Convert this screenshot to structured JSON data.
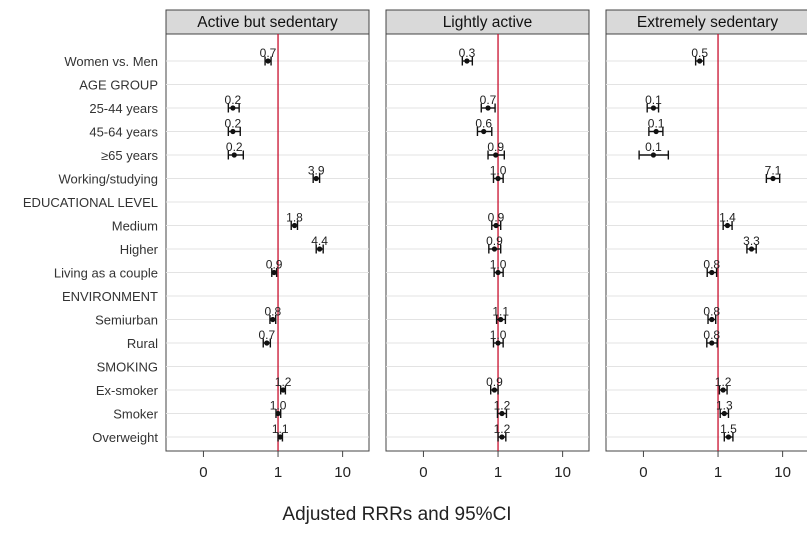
{
  "chart_data": {
    "type": "forest",
    "xlabel": "Adjusted RRRs and 95%CI",
    "x_scale": "log",
    "x_ticks": [
      "0",
      "1",
      "10"
    ],
    "reference_line": 1,
    "reference_color": "#c8102e",
    "rows": [
      {
        "label": "Women vs. Men",
        "header": false
      },
      {
        "label": "AGE GROUP",
        "header": true
      },
      {
        "label": "25-44 years",
        "header": false
      },
      {
        "label": "45-64 years",
        "header": false
      },
      {
        "label": "≥65 years",
        "header": false
      },
      {
        "label": "Working/studying",
        "header": false
      },
      {
        "label": "EDUCATIONAL LEVEL",
        "header": true
      },
      {
        "label": "Medium",
        "header": false
      },
      {
        "label": "Higher",
        "header": false
      },
      {
        "label": "Living as a couple",
        "header": false
      },
      {
        "label": "ENVIRONMENT",
        "header": true
      },
      {
        "label": "Semiurban",
        "header": false
      },
      {
        "label": "Rural",
        "header": false
      },
      {
        "label": "SMOKING",
        "header": true
      },
      {
        "label": "Ex-smoker",
        "header": false
      },
      {
        "label": "Smoker",
        "header": false
      },
      {
        "label": "Overweight",
        "header": false
      }
    ],
    "panels": [
      {
        "title": "Active but sedentary",
        "estimates": [
          {
            "row": 0,
            "label": "0.7",
            "value": 0.7,
            "lo": 0.63,
            "hi": 0.78
          },
          {
            "row": 2,
            "label": "0.2",
            "value": 0.2,
            "lo": 0.17,
            "hi": 0.25
          },
          {
            "row": 3,
            "label": "0.2",
            "value": 0.2,
            "lo": 0.17,
            "hi": 0.26
          },
          {
            "row": 4,
            "label": "0.2",
            "value": 0.21,
            "lo": 0.17,
            "hi": 0.29
          },
          {
            "row": 5,
            "label": "3.9",
            "value": 3.9,
            "lo": 3.5,
            "hi": 4.4
          },
          {
            "row": 7,
            "label": "1.8",
            "value": 1.8,
            "lo": 1.6,
            "hi": 2.0
          },
          {
            "row": 8,
            "label": "4.4",
            "value": 4.4,
            "lo": 3.9,
            "hi": 5.0
          },
          {
            "row": 9,
            "label": "0.9",
            "value": 0.87,
            "lo": 0.8,
            "hi": 0.95
          },
          {
            "row": 11,
            "label": "0.8",
            "value": 0.83,
            "lo": 0.75,
            "hi": 0.92
          },
          {
            "row": 12,
            "label": "0.7",
            "value": 0.67,
            "lo": 0.59,
            "hi": 0.76
          },
          {
            "row": 14,
            "label": "1.2",
            "value": 1.2,
            "lo": 1.1,
            "hi": 1.3
          },
          {
            "row": 15,
            "label": "1.0",
            "value": 1.0,
            "lo": 0.93,
            "hi": 1.1
          },
          {
            "row": 16,
            "label": "1.1",
            "value": 1.08,
            "lo": 1.0,
            "hi": 1.17
          }
        ]
      },
      {
        "title": "Lightly active",
        "estimates": [
          {
            "row": 0,
            "label": "0.3",
            "value": 0.33,
            "lo": 0.28,
            "hi": 0.4
          },
          {
            "row": 2,
            "label": "0.7",
            "value": 0.7,
            "lo": 0.55,
            "hi": 0.9
          },
          {
            "row": 3,
            "label": "0.6",
            "value": 0.6,
            "lo": 0.48,
            "hi": 0.8
          },
          {
            "row": 4,
            "label": "0.9",
            "value": 0.92,
            "lo": 0.7,
            "hi": 1.25
          },
          {
            "row": 5,
            "label": "1.0",
            "value": 1.0,
            "lo": 0.85,
            "hi": 1.2
          },
          {
            "row": 7,
            "label": "0.9",
            "value": 0.93,
            "lo": 0.8,
            "hi": 1.1
          },
          {
            "row": 8,
            "label": "0.9",
            "value": 0.88,
            "lo": 0.72,
            "hi": 1.1
          },
          {
            "row": 9,
            "label": "1.0",
            "value": 1.0,
            "lo": 0.87,
            "hi": 1.2
          },
          {
            "row": 11,
            "label": "1.1",
            "value": 1.1,
            "lo": 0.95,
            "hi": 1.3
          },
          {
            "row": 12,
            "label": "1.0",
            "value": 1.0,
            "lo": 0.85,
            "hi": 1.2
          },
          {
            "row": 14,
            "label": "0.9",
            "value": 0.88,
            "lo": 0.77,
            "hi": 1.0
          },
          {
            "row": 15,
            "label": "1.2",
            "value": 1.15,
            "lo": 0.98,
            "hi": 1.35
          },
          {
            "row": 16,
            "label": "1.2",
            "value": 1.15,
            "lo": 1.0,
            "hi": 1.32
          }
        ]
      },
      {
        "title": "Extremely sedentary",
        "estimates": [
          {
            "row": 0,
            "label": "0.5",
            "value": 0.52,
            "lo": 0.45,
            "hi": 0.6
          },
          {
            "row": 2,
            "label": "0.1",
            "value": 0.1,
            "lo": 0.08,
            "hi": 0.12
          },
          {
            "row": 3,
            "label": "0.1",
            "value": 0.11,
            "lo": 0.085,
            "hi": 0.14
          },
          {
            "row": 4,
            "label": "0.1",
            "value": 0.1,
            "lo": 0.06,
            "hi": 0.17
          },
          {
            "row": 5,
            "label": "7.1",
            "value": 7.1,
            "lo": 5.6,
            "hi": 9.0
          },
          {
            "row": 7,
            "label": "1.4",
            "value": 1.4,
            "lo": 1.2,
            "hi": 1.65
          },
          {
            "row": 8,
            "label": "3.3",
            "value": 3.3,
            "lo": 2.8,
            "hi": 3.9
          },
          {
            "row": 9,
            "label": "0.8",
            "value": 0.8,
            "lo": 0.68,
            "hi": 0.95
          },
          {
            "row": 11,
            "label": "0.8",
            "value": 0.8,
            "lo": 0.7,
            "hi": 0.92
          },
          {
            "row": 12,
            "label": "0.8",
            "value": 0.8,
            "lo": 0.67,
            "hi": 0.97
          },
          {
            "row": 14,
            "label": "1.2",
            "value": 1.2,
            "lo": 1.05,
            "hi": 1.38
          },
          {
            "row": 15,
            "label": "1.3",
            "value": 1.25,
            "lo": 1.08,
            "hi": 1.45
          },
          {
            "row": 16,
            "label": "1.5",
            "value": 1.45,
            "lo": 1.25,
            "hi": 1.7
          }
        ]
      }
    ]
  }
}
